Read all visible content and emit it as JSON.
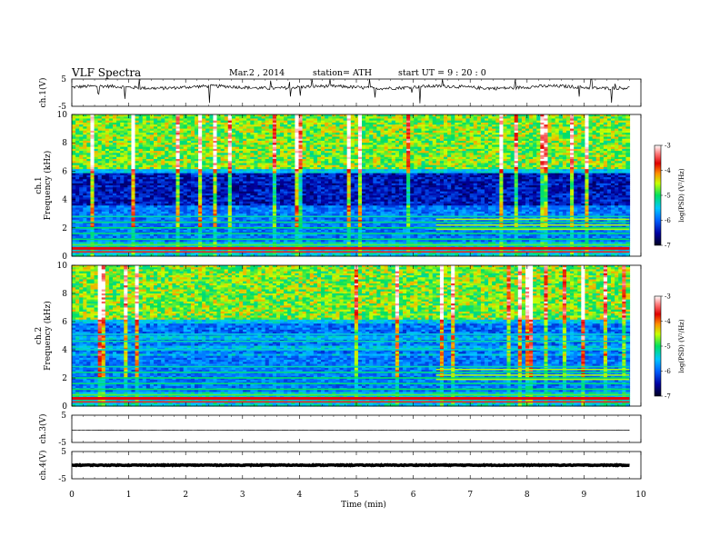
{
  "header": {
    "title": "VLF  Spectra",
    "date": "Mar.2  , 2014",
    "station": "station= ATH",
    "start": "start  UT  =   9  : 20 : 0"
  },
  "chart_data": [
    {
      "type": "line",
      "panel": "ch1-waveform",
      "ylabel": "ch.1(V)",
      "ylim": [
        -5,
        5
      ],
      "y_ticks": [
        "5",
        "-5"
      ],
      "xlim": [
        0,
        10
      ],
      "x_end": 9.8,
      "baseline": 2.0,
      "noise": "dense spiky waveform"
    },
    {
      "type": "heatmap",
      "panel": "ch1-spectrogram",
      "ylabel": "ch.1\nFrequency  (kHz)",
      "ylim": [
        0,
        10
      ],
      "y_ticks": [
        "0",
        "2",
        "4",
        "6",
        "8",
        "10"
      ],
      "xlim": [
        0,
        10
      ],
      "x_end": 9.8,
      "colorbar": {
        "label": "log(PSD) (V²/Hz)",
        "range": [
          -7,
          -3
        ],
        "ticks": [
          "-3",
          "-4",
          "-5",
          "-6",
          "-7"
        ]
      }
    },
    {
      "type": "heatmap",
      "panel": "ch2-spectrogram",
      "ylabel": "ch.2\nFrequency  (kHz)",
      "ylim": [
        0,
        10
      ],
      "y_ticks": [
        "0",
        "2",
        "4",
        "6",
        "8",
        "10"
      ],
      "xlim": [
        0,
        10
      ],
      "x_end": 9.8,
      "colorbar": {
        "label": "log(PSD) (V²/Hz)",
        "range": [
          -7,
          -3
        ],
        "ticks": [
          "-3",
          "-4",
          "-5",
          "-6",
          "-7"
        ]
      }
    },
    {
      "type": "line",
      "panel": "ch3-waveform",
      "ylabel": "ch.3(V)",
      "ylim": [
        -5,
        5
      ],
      "y_ticks": [
        "5",
        "-5"
      ],
      "xlim": [
        0,
        10
      ],
      "x_end": 9.8,
      "baseline": -0.5,
      "noise": "near flat"
    },
    {
      "type": "line",
      "panel": "ch4-waveform",
      "ylabel": "ch.4(V)",
      "ylim": [
        -5,
        5
      ],
      "y_ticks": [
        "5",
        "-5"
      ],
      "xlim": [
        0,
        10
      ],
      "x_end": 9.8,
      "baseline": 0,
      "noise": "thick flat band"
    }
  ],
  "xaxis": {
    "label": "Time  (min)",
    "ticks": [
      "0",
      "1",
      "2",
      "3",
      "4",
      "5",
      "6",
      "7",
      "8",
      "9",
      "10"
    ]
  }
}
